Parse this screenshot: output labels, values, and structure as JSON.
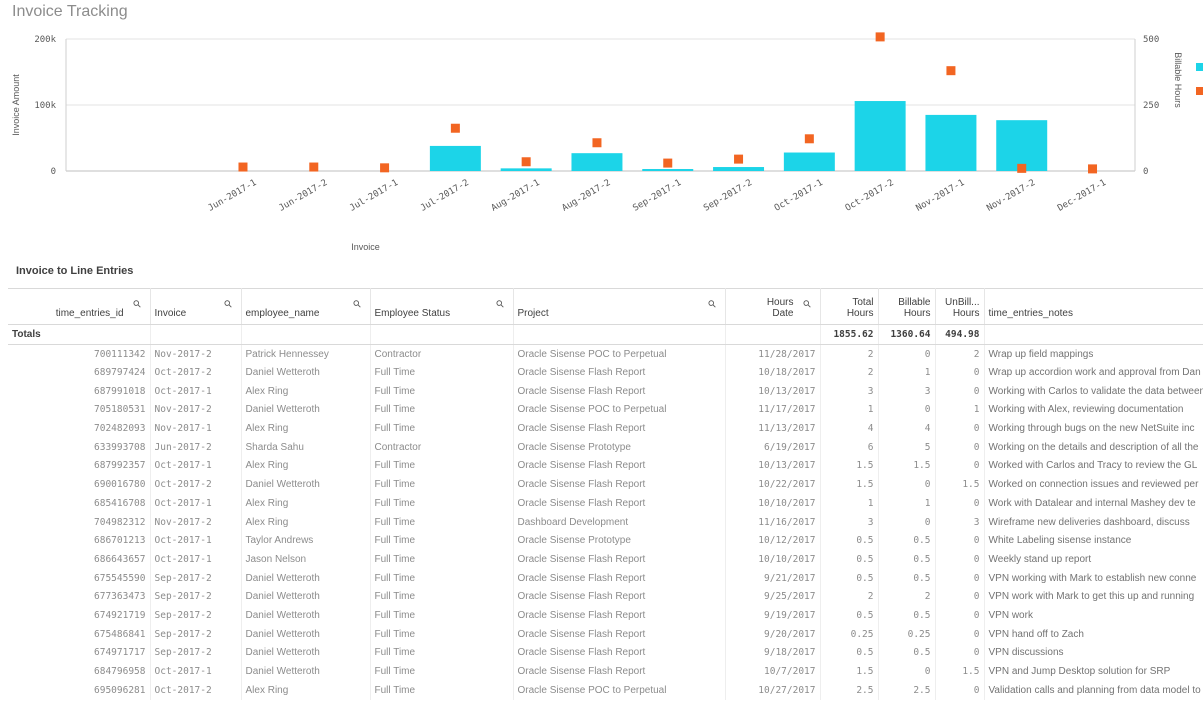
{
  "app": {
    "title": "Invoice Tracking"
  },
  "chart_data": {
    "type": "bar",
    "xlabel": "Invoice",
    "ylabel": "Invoice Amount",
    "y2label": "Billable Hours",
    "ylim": [
      0,
      200000
    ],
    "y2lim": [
      0,
      500
    ],
    "yticks": [
      {
        "value": 0,
        "label": "0"
      },
      {
        "value": 100000,
        "label": "100k"
      },
      {
        "value": 200000,
        "label": "200k"
      }
    ],
    "y2ticks": [
      {
        "value": 0,
        "label": "0"
      },
      {
        "value": 250,
        "label": "250"
      },
      {
        "value": 500,
        "label": "500"
      }
    ],
    "categories": [
      "Jun-2017-1",
      "Jun-2017-2",
      "Jul-2017-1",
      "Jul-2017-2",
      "Aug-2017-1",
      "Aug-2017-2",
      "Sep-2017-1",
      "Sep-2017-2",
      "Oct-2017-1",
      "Oct-2017-2",
      "Nov-2017-1",
      "Nov-2017-2",
      "Dec-2017-1"
    ],
    "series": [
      {
        "values": [
          0,
          0,
          0,
          38000,
          4000,
          27000,
          3000,
          6000,
          28000,
          106000,
          85000,
          77000,
          0
        ],
        "color": "#1cd4e8",
        "axis": "left",
        "kind": "bar"
      },
      {
        "values": [
          15,
          15,
          12,
          162,
          35,
          107,
          30,
          45,
          122,
          508,
          380,
          10,
          8
        ],
        "color": "#f26522",
        "axis": "right",
        "kind": "marker"
      }
    ]
  },
  "table": {
    "title": "Invoice to Line Entries",
    "columns": [
      {
        "label": "time_entries_id",
        "search": true,
        "align": "right",
        "width": 142
      },
      {
        "label": "Invoice",
        "search": true,
        "align": "left",
        "width": 91
      },
      {
        "label": "employee_name",
        "search": true,
        "align": "left",
        "width": 129
      },
      {
        "label": "Employee Status",
        "search": true,
        "align": "left",
        "width": 143
      },
      {
        "label": "Project",
        "search": true,
        "align": "left",
        "width": 212
      },
      {
        "label": "Hours\nDate",
        "search": true,
        "align": "right",
        "width": 95
      },
      {
        "label": "Total\nHours",
        "search": false,
        "align": "right",
        "width": 58
      },
      {
        "label": "Billable\nHours",
        "search": false,
        "align": "right",
        "width": 57
      },
      {
        "label": "UnBill...\nHours",
        "search": false,
        "align": "right",
        "width": 49
      },
      {
        "label": "time_entries_notes",
        "search": false,
        "align": "left",
        "width": 219
      }
    ],
    "totals": {
      "label": "Totals",
      "total_hours": "1855.62",
      "billable_hours": "1360.64",
      "unbillable_hours": "494.98"
    },
    "rows": [
      [
        "700111342",
        "Nov-2017-2",
        "Patrick Hennessey",
        "Contractor",
        "Oracle Sisense POC to Perpetual",
        "11/28/2017",
        "2",
        "0",
        "2",
        "Wrap up field mappings"
      ],
      [
        "689797424",
        "Oct-2017-2",
        "Daniel Wetteroth",
        "Full Time",
        "Oracle Sisense Flash Report",
        "10/18/2017",
        "2",
        "1",
        "0",
        "Wrap up accordion work and approval from Dan"
      ],
      [
        "687991018",
        "Oct-2017-1",
        "Alex Ring",
        "Full Time",
        "Oracle Sisense Flash Report",
        "10/13/2017",
        "3",
        "3",
        "0",
        "Working with Carlos to validate the data between"
      ],
      [
        "705180531",
        "Nov-2017-2",
        "Daniel Wetteroth",
        "Full Time",
        "Oracle Sisense POC to Perpetual",
        "11/17/2017",
        "1",
        "0",
        "1",
        "Working with Alex, reviewing documentation"
      ],
      [
        "702482093",
        "Nov-2017-1",
        "Alex Ring",
        "Full Time",
        "Oracle Sisense Flash Report",
        "11/13/2017",
        "4",
        "4",
        "0",
        "Working through bugs on the new NetSuite inc"
      ],
      [
        "633993708",
        "Jun-2017-2",
        "Sharda Sahu",
        "Contractor",
        "Oracle Sisense Prototype",
        "6/19/2017",
        "6",
        "5",
        "0",
        "Working on the details and description of all the"
      ],
      [
        "687992357",
        "Oct-2017-1",
        "Alex Ring",
        "Full Time",
        "Oracle Sisense Flash Report",
        "10/13/2017",
        "1.5",
        "1.5",
        "0",
        "Worked with Carlos and Tracy to review the GL"
      ],
      [
        "690016780",
        "Oct-2017-2",
        "Daniel Wetteroth",
        "Full Time",
        "Oracle Sisense Flash Report",
        "10/22/2017",
        "1.5",
        "0",
        "1.5",
        "Worked on connection issues and reviewed per"
      ],
      [
        "685416708",
        "Oct-2017-1",
        "Alex Ring",
        "Full Time",
        "Oracle Sisense Flash Report",
        "10/10/2017",
        "1",
        "1",
        "0",
        "Work with Datalear and internal Mashey dev te"
      ],
      [
        "704982312",
        "Nov-2017-2",
        "Alex Ring",
        "Full Time",
        "Dashboard Development",
        "11/16/2017",
        "3",
        "0",
        "3",
        "Wireframe new deliveries dashboard, discuss"
      ],
      [
        "686701213",
        "Oct-2017-1",
        "Taylor Andrews",
        "Full Time",
        "Oracle Sisense Prototype",
        "10/12/2017",
        "0.5",
        "0.5",
        "0",
        "White Labeling sisense instance"
      ],
      [
        "686643657",
        "Oct-2017-1",
        "Jason Nelson",
        "Full Time",
        "Oracle Sisense Flash Report",
        "10/10/2017",
        "0.5",
        "0.5",
        "0",
        "Weekly stand up report"
      ],
      [
        "675545590",
        "Sep-2017-2",
        "Daniel Wetteroth",
        "Full Time",
        "Oracle Sisense Flash Report",
        "9/21/2017",
        "0.5",
        "0.5",
        "0",
        "VPN working with Mark to establish new conne"
      ],
      [
        "677363473",
        "Sep-2017-2",
        "Daniel Wetteroth",
        "Full Time",
        "Oracle Sisense Flash Report",
        "9/25/2017",
        "2",
        "2",
        "0",
        "VPN work with Mark to get this up and running"
      ],
      [
        "674921719",
        "Sep-2017-2",
        "Daniel Wetteroth",
        "Full Time",
        "Oracle Sisense Flash Report",
        "9/19/2017",
        "0.5",
        "0.5",
        "0",
        "VPN work"
      ],
      [
        "675486841",
        "Sep-2017-2",
        "Daniel Wetteroth",
        "Full Time",
        "Oracle Sisense Flash Report",
        "9/20/2017",
        "0.25",
        "0.25",
        "0",
        "VPN hand off to Zach"
      ],
      [
        "674971717",
        "Sep-2017-2",
        "Daniel Wetteroth",
        "Full Time",
        "Oracle Sisense Flash Report",
        "9/18/2017",
        "0.5",
        "0.5",
        "0",
        "VPN discussions"
      ],
      [
        "684796958",
        "Oct-2017-1",
        "Daniel Wetteroth",
        "Full Time",
        "Oracle Sisense Flash Report",
        "10/7/2017",
        "1.5",
        "0",
        "1.5",
        "VPN and Jump Desktop solution for SRP"
      ],
      [
        "695096281",
        "Oct-2017-2",
        "Alex Ring",
        "Full Time",
        "Oracle Sisense POC to Perpetual",
        "10/27/2017",
        "2.5",
        "2.5",
        "0",
        "Validation calls and planning from data model to"
      ]
    ]
  }
}
